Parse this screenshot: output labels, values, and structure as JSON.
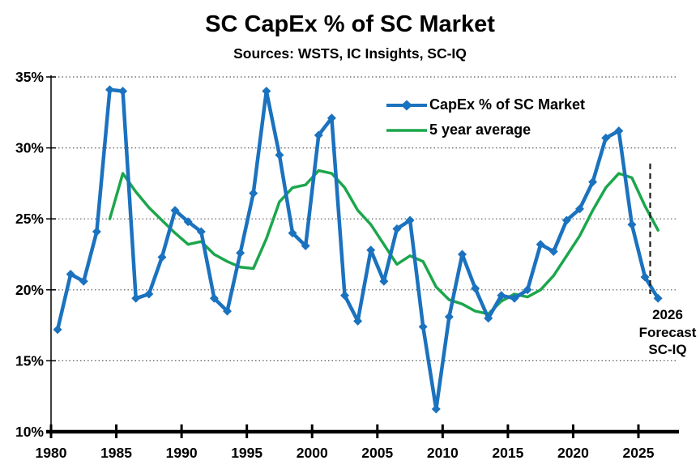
{
  "title": "SC CapEx % of SC Market",
  "subtitle": "Sources: WSTS, IC Insights, SC-IQ",
  "colors": {
    "capex_line": "#1b72be",
    "avg_line": "#1ca64c",
    "grid": "#595959",
    "axis": "#000000",
    "annotation_line": "#1a1a1a",
    "text": "#000000",
    "background": "#ffffff"
  },
  "legend": {
    "items": [
      {
        "label": "CapEx % of SC Market",
        "marker": "diamond-line",
        "color": "#1b72be"
      },
      {
        "label": "5 year average",
        "marker": "line",
        "color": "#1ca64c"
      }
    ]
  },
  "annotation": {
    "lines": [
      "2026",
      "Forecast",
      "SC-IQ"
    ],
    "dashed_line": {
      "year": 2025.4,
      "from": 19.7,
      "to": 28.9
    }
  },
  "chart_data": {
    "type": "line",
    "title": "SC CapEx % of SC Market",
    "subtitle": "Sources: WSTS, IC Insights, SC-IQ",
    "xlabel": "",
    "ylabel": "",
    "x": [
      1980,
      1981,
      1982,
      1983,
      1984,
      1985,
      1986,
      1987,
      1988,
      1989,
      1990,
      1991,
      1992,
      1993,
      1994,
      1995,
      1996,
      1997,
      1998,
      1999,
      2000,
      2001,
      2002,
      2003,
      2004,
      2005,
      2006,
      2007,
      2008,
      2009,
      2010,
      2011,
      2012,
      2013,
      2014,
      2015,
      2016,
      2017,
      2018,
      2019,
      2020,
      2021,
      2022,
      2023,
      2024,
      2025,
      2026
    ],
    "series": [
      {
        "name": "CapEx % of SC Market",
        "color": "#1b72be",
        "marker": "diamond",
        "values": [
          17.2,
          21.1,
          20.6,
          24.1,
          34.1,
          34.0,
          19.4,
          19.7,
          22.3,
          25.6,
          24.8,
          24.1,
          19.4,
          18.5,
          22.6,
          26.8,
          34.0,
          29.5,
          24.0,
          23.1,
          30.9,
          32.1,
          19.6,
          17.8,
          22.8,
          20.6,
          24.3,
          24.9,
          17.4,
          11.6,
          18.1,
          22.5,
          20.1,
          18.0,
          19.6,
          19.4,
          20.0,
          23.2,
          22.7,
          24.9,
          25.7,
          27.6,
          30.7,
          31.2,
          24.6,
          20.9,
          19.4
        ]
      },
      {
        "name": "5 year average",
        "color": "#1ca64c",
        "marker": "none",
        "values": [
          null,
          null,
          null,
          null,
          25.0,
          28.2,
          26.9,
          25.8,
          24.9,
          24.0,
          23.2,
          23.4,
          22.5,
          22.0,
          21.6,
          21.5,
          23.6,
          26.2,
          27.2,
          27.4,
          28.4,
          28.2,
          27.2,
          25.6,
          24.6,
          23.2,
          21.8,
          22.4,
          22.0,
          20.2,
          19.3,
          19.0,
          18.5,
          18.3,
          19.2,
          19.7,
          19.5,
          20.0,
          21.0,
          22.4,
          23.8,
          25.6,
          27.2,
          28.2,
          27.9,
          25.9,
          24.2
        ]
      }
    ],
    "ylim": [
      10,
      35
    ],
    "xticks": [
      1980,
      1985,
      1990,
      1995,
      2000,
      2005,
      2010,
      2015,
      2020,
      2025
    ],
    "xtick_labels": [
      "1980",
      "1985",
      "1990",
      "1995",
      "2000",
      "2005",
      "2010",
      "2015",
      "2020",
      "2025"
    ],
    "yticks": [
      10,
      15,
      20,
      25,
      30,
      35
    ],
    "ytick_labels": [
      "10%",
      "15%",
      "20%",
      "25%",
      "30%",
      "35%"
    ],
    "grid": "horizontal dotted",
    "legend_position": "top-right-inside",
    "forecast_note": "2026 Forecast SC-IQ"
  }
}
